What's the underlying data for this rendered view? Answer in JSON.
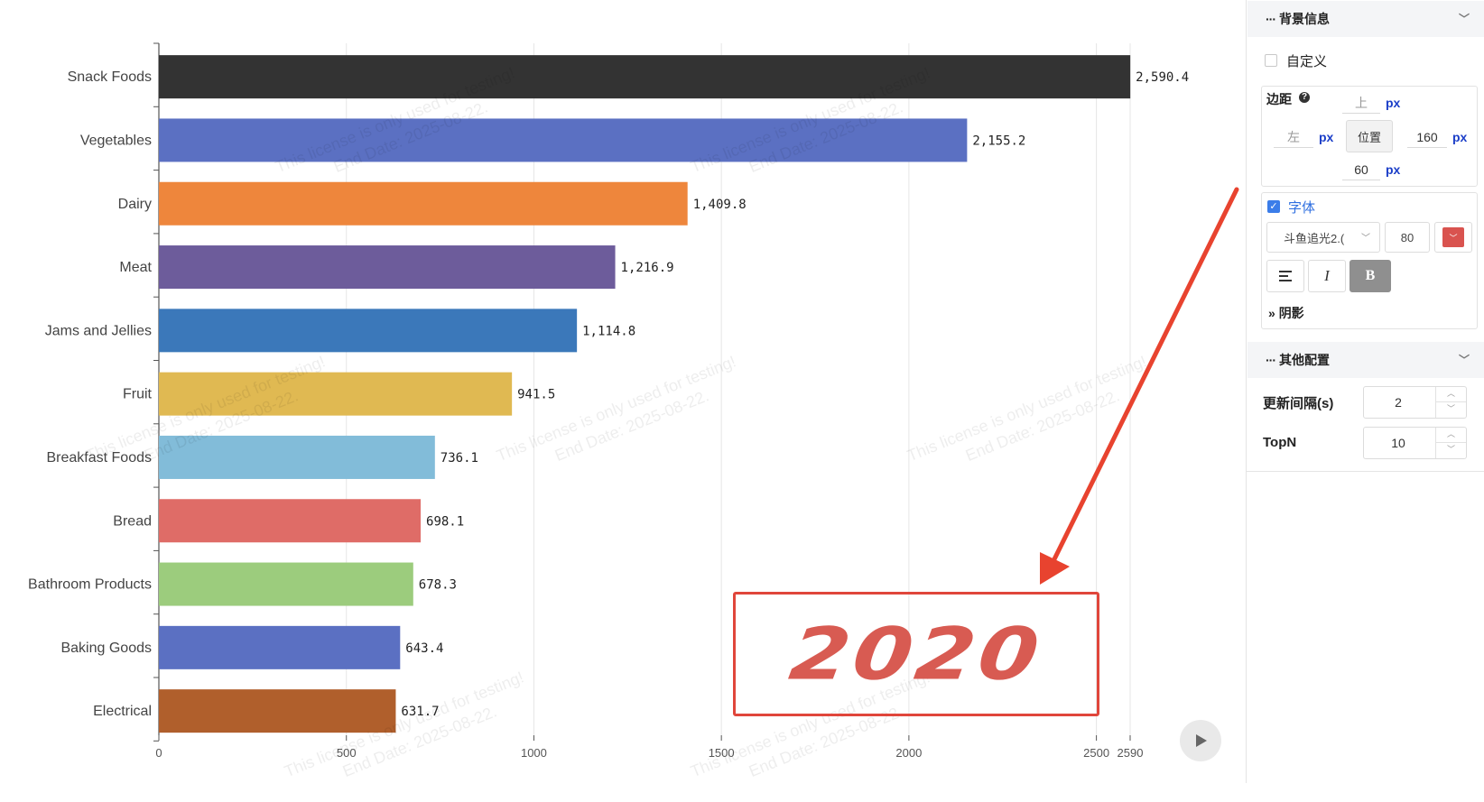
{
  "chart_data": {
    "type": "bar",
    "orientation": "horizontal",
    "categories": [
      "Snack Foods",
      "Vegetables",
      "Dairy",
      "Meat",
      "Jams and Jellies",
      "Fruit",
      "Breakfast Foods",
      "Bread",
      "Bathroom Products",
      "Baking Goods",
      "Electrical"
    ],
    "values": [
      2590.4,
      2155.2,
      1409.8,
      1216.9,
      1114.8,
      941.5,
      736.1,
      698.1,
      678.3,
      643.4,
      631.7
    ],
    "value_labels": [
      "2,590.4",
      "2,155.2",
      "1,409.8",
      "1,216.9",
      "1,114.8",
      "941.5",
      "736.1",
      "698.1",
      "678.3",
      "643.4",
      "631.7"
    ],
    "colors": [
      "#333333",
      "#5b70c2",
      "#ee863c",
      "#6d5c9b",
      "#3b78ba",
      "#e0b952",
      "#82bcd9",
      "#df6c67",
      "#9ccc7d",
      "#5b70c2",
      "#b05f2c"
    ],
    "x_ticks": [
      "0",
      "500",
      "1000",
      "1500",
      "2000",
      "2500",
      "2590"
    ],
    "x_tick_values": [
      0,
      500,
      1000,
      1500,
      2000,
      2500,
      2590
    ],
    "xlim": [
      0,
      2590
    ],
    "grid": true,
    "year_label": "2020"
  },
  "watermark": {
    "line1": "This license is only used for testing!",
    "line2": "End Date: 2025-08-22."
  },
  "panel": {
    "background_section": {
      "title": "背景信息",
      "custom_label": "自定义",
      "custom_checked": false,
      "margin_label": "边距",
      "top_placeholder": "上",
      "left_placeholder": "左",
      "right_value": "160",
      "bottom_value": "60",
      "unit": "px",
      "position_button": "位置",
      "font_label": "字体",
      "font_checked": true,
      "font_family": "斗鱼追光2.(",
      "font_size": "80",
      "font_color": "#d9534f",
      "italic_label": "I",
      "bold_label": "B",
      "shadow_label": "阴影"
    },
    "other_section": {
      "title": "其他配置",
      "interval_label": "更新间隔(s)",
      "interval_value": "2",
      "topn_label": "TopN",
      "topn_value": "10"
    }
  }
}
